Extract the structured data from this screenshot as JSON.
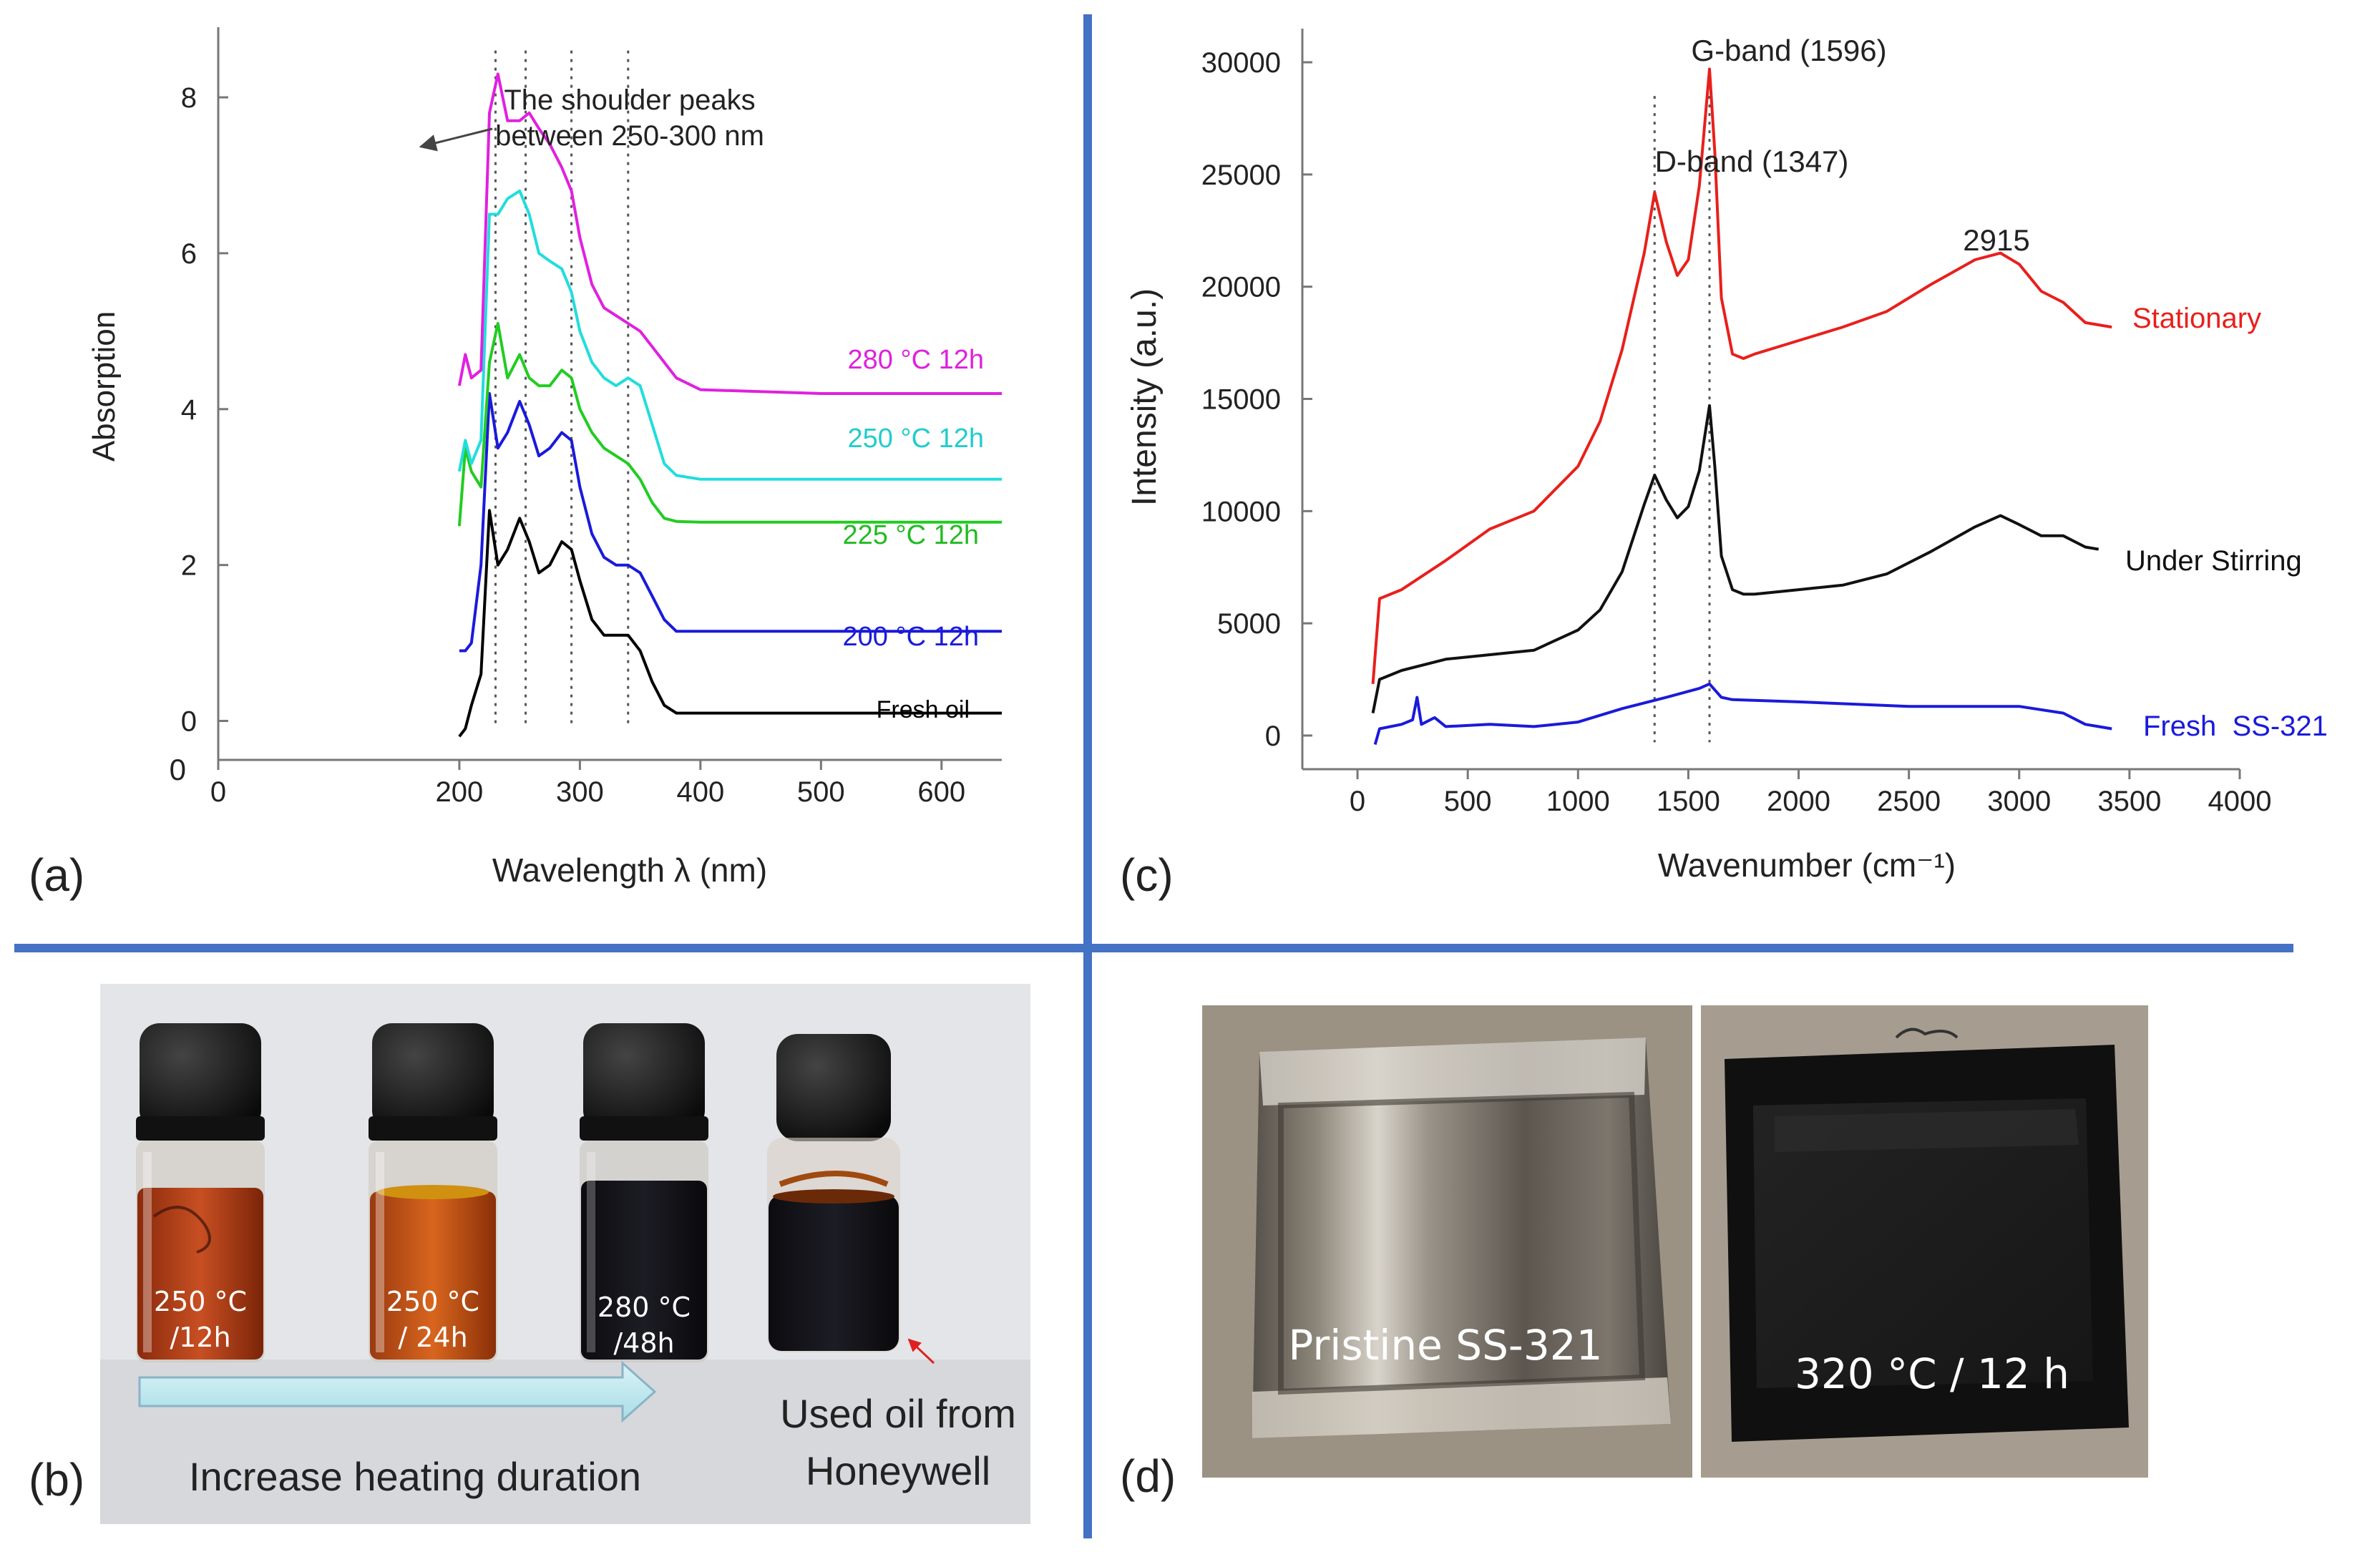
{
  "panel_labels": {
    "a": "(a)",
    "b": "(b)",
    "c": "(c)",
    "d": "(d)"
  },
  "colors": {
    "divider": "#4472c4"
  },
  "chart_data": [
    {
      "panel": "(a)",
      "type": "line",
      "xlabel": "Wavelength λ (nm)",
      "ylabel": "Absorption",
      "xlim": [
        0,
        650
      ],
      "ylim": [
        -0.5,
        8.9
      ],
      "xticks": [
        0,
        200,
        300,
        400,
        500,
        600
      ],
      "xtick_labels": [
        "0",
        "200",
        "300",
        "400",
        "500",
        "600"
      ],
      "yticks": [
        0,
        2,
        4,
        6,
        8
      ],
      "ytick_labels": [
        "0",
        "2",
        "4",
        "6",
        "8"
      ],
      "y_bottom_label": "0",
      "annotation": {
        "line1": "The shoulder peaks",
        "line2": "between 250-300 nm",
        "target": [
          265,
          7.6
        ]
      },
      "reference_lines_x": [
        230,
        255,
        293,
        340
      ],
      "series": [
        {
          "name": "Fresh oil",
          "color": "#000000",
          "x": [
            200,
            205,
            210,
            218,
            225,
            232,
            240,
            250,
            258,
            266,
            275,
            285,
            293,
            300,
            310,
            320,
            330,
            340,
            350,
            360,
            370,
            380,
            400,
            500,
            650
          ],
          "y": [
            -0.2,
            -0.1,
            0.2,
            0.6,
            2.7,
            2.0,
            2.2,
            2.6,
            2.3,
            1.9,
            2.0,
            2.3,
            2.2,
            1.8,
            1.3,
            1.1,
            1.1,
            1.1,
            0.9,
            0.5,
            0.2,
            0.1,
            0.1,
            0.1,
            0.1
          ]
        },
        {
          "name": "200 °C 12h",
          "color": "#1a1adb",
          "x": [
            200,
            205,
            210,
            218,
            225,
            232,
            240,
            250,
            258,
            266,
            275,
            285,
            293,
            300,
            310,
            320,
            330,
            340,
            350,
            360,
            370,
            380,
            400,
            500,
            650
          ],
          "y": [
            0.9,
            0.9,
            1.0,
            2.0,
            4.2,
            3.5,
            3.7,
            4.1,
            3.8,
            3.4,
            3.5,
            3.7,
            3.6,
            3.0,
            2.4,
            2.1,
            2.0,
            2.0,
            1.9,
            1.6,
            1.3,
            1.15,
            1.15,
            1.15,
            1.15
          ]
        },
        {
          "name": "225 °C 12h",
          "color": "#22cc22",
          "x": [
            200,
            205,
            210,
            218,
            225,
            232,
            240,
            250,
            258,
            266,
            275,
            285,
            293,
            300,
            310,
            320,
            330,
            340,
            350,
            360,
            370,
            380,
            400,
            500,
            650
          ],
          "y": [
            2.5,
            3.5,
            3.2,
            3.0,
            4.6,
            5.1,
            4.4,
            4.7,
            4.4,
            4.3,
            4.3,
            4.5,
            4.4,
            4.0,
            3.7,
            3.5,
            3.4,
            3.3,
            3.1,
            2.8,
            2.6,
            2.56,
            2.55,
            2.55,
            2.55
          ]
        },
        {
          "name": "250 °C 12h",
          "color": "#22dddd",
          "x": [
            200,
            205,
            210,
            218,
            225,
            232,
            240,
            250,
            258,
            266,
            275,
            285,
            293,
            300,
            310,
            320,
            330,
            340,
            350,
            360,
            370,
            380,
            400,
            500,
            650
          ],
          "y": [
            3.2,
            3.6,
            3.3,
            3.6,
            6.5,
            6.5,
            6.7,
            6.8,
            6.5,
            6.0,
            5.9,
            5.8,
            5.5,
            5.0,
            4.6,
            4.4,
            4.3,
            4.4,
            4.3,
            3.8,
            3.3,
            3.15,
            3.1,
            3.1,
            3.1
          ]
        },
        {
          "name": "280 °C 12h",
          "color": "#e020e0",
          "x": [
            200,
            205,
            210,
            218,
            225,
            232,
            240,
            250,
            258,
            266,
            275,
            285,
            293,
            300,
            310,
            320,
            330,
            340,
            350,
            360,
            370,
            380,
            400,
            500,
            650
          ],
          "y": [
            4.3,
            4.7,
            4.4,
            4.5,
            7.8,
            8.3,
            7.7,
            7.7,
            7.8,
            7.6,
            7.4,
            7.1,
            6.8,
            6.2,
            5.6,
            5.3,
            5.2,
            5.1,
            5.0,
            4.8,
            4.6,
            4.4,
            4.25,
            4.2,
            4.2
          ]
        }
      ]
    },
    {
      "panel": "(c)",
      "type": "line",
      "xlabel": "Wavenumber (cm⁻¹)",
      "ylabel": "Intensity (a.u.)",
      "xlim": [
        -250,
        4000
      ],
      "ylim": [
        -1500,
        31500
      ],
      "xticks": [
        0,
        500,
        1000,
        1500,
        2000,
        2500,
        3000,
        3500,
        4000
      ],
      "xtick_labels": [
        "0",
        "500",
        "1000",
        "1500",
        "2000",
        "2500",
        "3000",
        "3500",
        "4000"
      ],
      "yticks": [
        0,
        5000,
        10000,
        15000,
        20000,
        25000,
        30000
      ],
      "ytick_labels": [
        "0",
        "5000",
        "10000",
        "15000",
        "20000",
        "25000",
        "30000"
      ],
      "annotations": [
        "G-band (1596)",
        "D-band (1347)",
        "2915"
      ],
      "reference_lines_x": [
        1347,
        1596
      ],
      "series": [
        {
          "name": "Stationary",
          "color": "#e8201c",
          "x": [
            70,
            100,
            200,
            400,
            600,
            800,
            1000,
            1100,
            1200,
            1300,
            1347,
            1400,
            1450,
            1500,
            1550,
            1596,
            1620,
            1650,
            1700,
            1750,
            1800,
            2000,
            2200,
            2400,
            2600,
            2800,
            2915,
            3000,
            3100,
            3200,
            3300,
            3420
          ],
          "y": [
            2300,
            6100,
            6500,
            7800,
            9200,
            10000,
            12000,
            14000,
            17200,
            21500,
            24200,
            22000,
            20500,
            21200,
            24500,
            29700,
            26000,
            19500,
            17000,
            16800,
            17000,
            17600,
            18200,
            18900,
            20100,
            21200,
            21500,
            21000,
            19800,
            19300,
            18400,
            18200
          ]
        },
        {
          "name": "Under Stirring",
          "color": "#111111",
          "x": [
            70,
            100,
            200,
            400,
            600,
            800,
            1000,
            1100,
            1200,
            1300,
            1347,
            1400,
            1450,
            1500,
            1550,
            1596,
            1620,
            1650,
            1700,
            1750,
            1800,
            2000,
            2200,
            2400,
            2600,
            2800,
            2915,
            3000,
            3100,
            3200,
            3300,
            3360
          ],
          "y": [
            1000,
            2500,
            2900,
            3400,
            3600,
            3800,
            4700,
            5600,
            7300,
            10300,
            11600,
            10500,
            9700,
            10200,
            11800,
            14700,
            12000,
            8000,
            6500,
            6300,
            6300,
            6500,
            6700,
            7200,
            8200,
            9300,
            9800,
            9400,
            8900,
            8900,
            8400,
            8300
          ]
        },
        {
          "name": "Fresh  SS-321",
          "color": "#1a1adb",
          "x": [
            80,
            100,
            200,
            250,
            270,
            290,
            350,
            400,
            600,
            800,
            1000,
            1200,
            1400,
            1550,
            1596,
            1650,
            1700,
            2000,
            2500,
            3000,
            3200,
            3300,
            3420
          ],
          "y": [
            -400,
            300,
            500,
            700,
            1700,
            500,
            800,
            400,
            500,
            400,
            600,
            1200,
            1700,
            2100,
            2300,
            1700,
            1600,
            1500,
            1300,
            1300,
            1000,
            500,
            300
          ]
        }
      ]
    }
  ],
  "panel_b": {
    "vials": [
      {
        "line1": "250 °C",
        "line2": "/12h"
      },
      {
        "line1": "250 °C",
        "line2": "/ 24h"
      },
      {
        "line1": "280 °C",
        "line2": "/48h"
      }
    ],
    "arrow_label": "Increase heating duration",
    "used_oil_line1": "Used oil from",
    "used_oil_line2": "Honeywell"
  },
  "panel_d": {
    "left_label": "Pristine SS-321",
    "right_label": "320 °C / 12 h"
  }
}
